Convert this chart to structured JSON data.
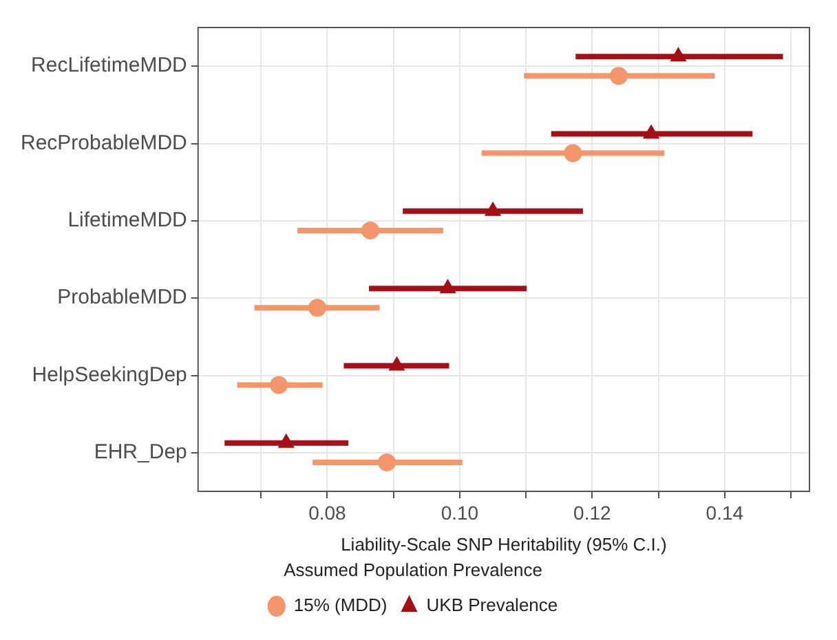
{
  "chart_data": {
    "type": "scatter",
    "orientation": "horizontal",
    "xlabel": "Liability-Scale SNP Heritability (95% C.I.)",
    "legend_title": "Assumed Population Prevalence",
    "legend": "bottom",
    "grid": true,
    "categories": [
      "RecLifetimeMDD",
      "RecProbableMDD",
      "LifetimeMDD",
      "ProbableMDD",
      "HelpSeekingDep",
      "EHR_Dep"
    ],
    "xlim": [
      0.0605,
      0.1528
    ],
    "xticks": [
      {
        "value": 0.07,
        "label": null
      },
      0.08,
      {
        "value": 0.09,
        "label": null
      },
      {
        "value": 0.1,
        "label": "0.10"
      },
      {
        "value": 0.11,
        "label": null
      },
      0.12,
      {
        "value": 0.13,
        "label": null
      },
      0.14,
      {
        "value": 0.15,
        "label": null
      }
    ],
    "series": [
      {
        "name": "15% (MDD)",
        "color": "#f4956b",
        "marker": "circle",
        "values": [
          0.124,
          0.1171,
          0.0865,
          0.0785,
          0.0727,
          0.089
        ],
        "errors": [
          [
            0.1097,
            0.1385
          ],
          [
            0.1033,
            0.1309
          ],
          [
            0.0755,
            0.0975
          ],
          [
            0.069,
            0.0879
          ],
          [
            0.0664,
            0.0793
          ],
          [
            0.0778,
            0.1004
          ]
        ]
      },
      {
        "name": "UKB Prevalence",
        "color": "#a50f15",
        "marker": "triangle",
        "values": [
          0.133,
          0.1289,
          0.105,
          0.0982,
          0.0905,
          0.0738
        ],
        "errors": [
          [
            0.1175,
            0.1488
          ],
          [
            0.1138,
            0.1442
          ],
          [
            0.0914,
            0.1186
          ],
          [
            0.0863,
            0.1101
          ],
          [
            0.0825,
            0.0984
          ],
          [
            0.0645,
            0.0832
          ]
        ]
      }
    ]
  }
}
